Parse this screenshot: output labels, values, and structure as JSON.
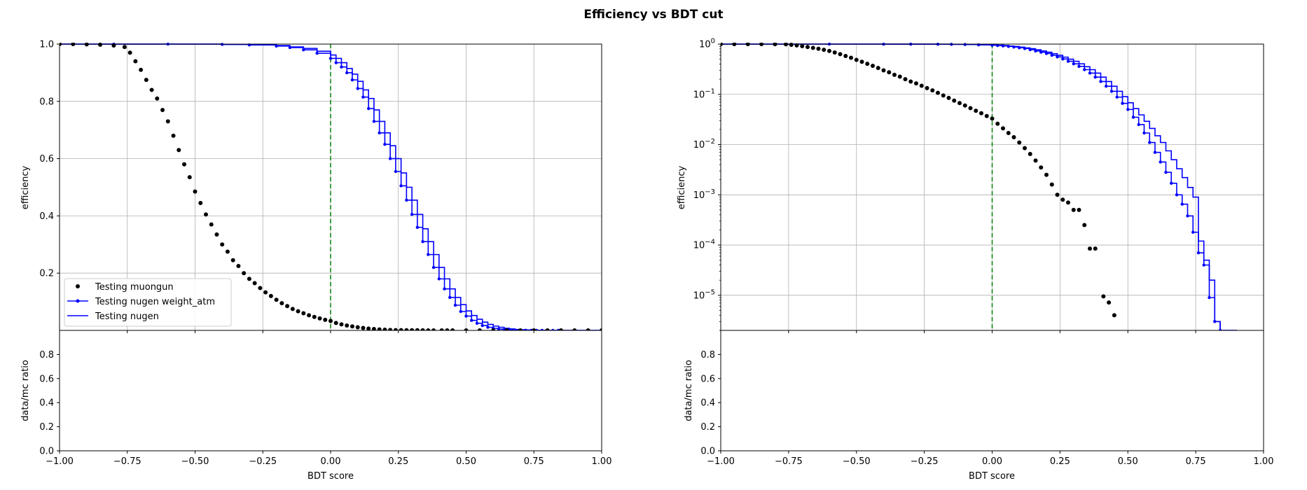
{
  "figure": {
    "title": "Efficiency vs BDT cut"
  },
  "colors": {
    "muongun": "#000000",
    "nugen_weight_atm": "#0000ff",
    "nugen": "#0000ff",
    "cut_line": "#008000",
    "grid": "#b0b0b0"
  },
  "chart_data": [
    {
      "type": "line",
      "panel": "left-linear",
      "xlabel": "BDT score",
      "ylabel": "efficiency",
      "xlim": [
        -1.0,
        1.0
      ],
      "ylim": [
        0.0,
        1.0
      ],
      "yscale": "linear",
      "xticks": [
        "−1.00",
        "−0.75",
        "−0.50",
        "−0.25",
        "0.00",
        "0.25",
        "0.50",
        "0.75",
        "1.00"
      ],
      "yticks": [
        "0.2",
        "0.4",
        "0.6",
        "0.8",
        "1.0"
      ],
      "grid": true,
      "cut_line_x": 0.0,
      "legend": {
        "position": "lower-left",
        "entries": [
          "Testing muongun",
          "Testing nugen weight_atm",
          "Testing nugen"
        ]
      },
      "ratio_panel": {
        "ylabel": "data/mc ratio",
        "ylim": [
          0.0,
          1.0
        ],
        "yticks": [
          "0.0",
          "0.2",
          "0.4",
          "0.6",
          "0.8"
        ]
      }
    },
    {
      "type": "line",
      "panel": "right-log",
      "xlabel": "BDT score",
      "ylabel": "efficiency",
      "xlim": [
        -1.0,
        1.0
      ],
      "ylim": [
        2e-06,
        1.0
      ],
      "yscale": "log",
      "xticks": [
        "−1.00",
        "−0.75",
        "−0.50",
        "−0.25",
        "0.00",
        "0.25",
        "0.50",
        "0.75",
        "1.00"
      ],
      "ytick_exponents": [
        "0",
        "−1",
        "−2",
        "−3",
        "−4",
        "−5"
      ],
      "grid": true,
      "cut_line_x": 0.0,
      "ratio_panel": {
        "ylabel": "data/mc ratio",
        "ylim": [
          0.0,
          1.0
        ],
        "yticks": [
          "0.0",
          "0.2",
          "0.4",
          "0.6",
          "0.8"
        ]
      }
    }
  ],
  "series": {
    "muongun": {
      "name": "Testing muongun",
      "x": [
        -1.0,
        -0.95,
        -0.9,
        -0.85,
        -0.8,
        -0.76,
        -0.74,
        -0.72,
        -0.7,
        -0.68,
        -0.66,
        -0.64,
        -0.62,
        -0.6,
        -0.58,
        -0.56,
        -0.54,
        -0.52,
        -0.5,
        -0.48,
        -0.46,
        -0.44,
        -0.42,
        -0.4,
        -0.38,
        -0.36,
        -0.34,
        -0.32,
        -0.3,
        -0.28,
        -0.26,
        -0.24,
        -0.22,
        -0.2,
        -0.18,
        -0.16,
        -0.14,
        -0.12,
        -0.1,
        -0.08,
        -0.06,
        -0.04,
        -0.02,
        0.0,
        0.02,
        0.04,
        0.06,
        0.08,
        0.1,
        0.12,
        0.14,
        0.16,
        0.18,
        0.2,
        0.22,
        0.24,
        0.26,
        0.28,
        0.3,
        0.32,
        0.34,
        0.36,
        0.38,
        0.41,
        0.43,
        0.45,
        0.5,
        0.55,
        0.6,
        0.65,
        0.7,
        0.75,
        0.8,
        0.85,
        0.9,
        0.95,
        1.0
      ],
      "y": [
        1.0,
        1.0,
        0.999,
        0.998,
        0.995,
        0.99,
        0.97,
        0.94,
        0.91,
        0.875,
        0.84,
        0.81,
        0.77,
        0.73,
        0.68,
        0.63,
        0.58,
        0.535,
        0.485,
        0.445,
        0.405,
        0.37,
        0.335,
        0.3,
        0.275,
        0.245,
        0.225,
        0.2,
        0.18,
        0.165,
        0.148,
        0.133,
        0.12,
        0.107,
        0.095,
        0.085,
        0.075,
        0.067,
        0.06,
        0.053,
        0.047,
        0.042,
        0.037,
        0.033,
        0.026,
        0.021,
        0.017,
        0.014,
        0.011,
        0.0085,
        0.0065,
        0.0048,
        0.0035,
        0.0025,
        0.0016,
        0.001,
        0.0008,
        0.0007,
        0.0005,
        0.0005,
        0.00025,
        8.5e-05,
        8.5e-05,
        9.5e-06,
        7.2e-06,
        4e-06,
        0.0,
        0.0,
        0.0,
        0.0,
        0.0,
        0.0,
        0.0,
        0.0,
        0.0,
        0.0,
        0.0
      ]
    },
    "nugen_weight_atm": {
      "name": "Testing nugen weight_atm",
      "x": [
        -1.0,
        -0.8,
        -0.6,
        -0.4,
        -0.3,
        -0.2,
        -0.15,
        -0.1,
        -0.05,
        0.0,
        0.02,
        0.04,
        0.06,
        0.08,
        0.1,
        0.12,
        0.14,
        0.16,
        0.18,
        0.2,
        0.22,
        0.24,
        0.26,
        0.28,
        0.3,
        0.32,
        0.34,
        0.36,
        0.38,
        0.4,
        0.42,
        0.44,
        0.46,
        0.48,
        0.5,
        0.52,
        0.54,
        0.56,
        0.58,
        0.6,
        0.62,
        0.64,
        0.66,
        0.68,
        0.7,
        0.72,
        0.74,
        0.76,
        0.78,
        0.8,
        0.82,
        0.84,
        0.9,
        1.0
      ],
      "y": [
        1.0,
        1.0,
        1.0,
        0.999,
        0.997,
        0.993,
        0.988,
        0.98,
        0.968,
        0.95,
        0.935,
        0.92,
        0.9,
        0.875,
        0.845,
        0.815,
        0.775,
        0.73,
        0.69,
        0.65,
        0.6,
        0.555,
        0.505,
        0.455,
        0.405,
        0.36,
        0.31,
        0.265,
        0.22,
        0.18,
        0.145,
        0.115,
        0.088,
        0.066,
        0.05,
        0.035,
        0.025,
        0.017,
        0.011,
        0.007,
        0.0045,
        0.0028,
        0.0017,
        0.001,
        0.00065,
        0.00038,
        0.00018,
        7e-05,
        4e-05,
        9e-06,
        3e-06,
        2e-06,
        0.0,
        0.0
      ]
    },
    "nugen": {
      "name": "Testing nugen",
      "x": [
        -1.0,
        -0.8,
        -0.6,
        -0.4,
        -0.3,
        -0.2,
        -0.15,
        -0.1,
        -0.05,
        0.0,
        0.02,
        0.04,
        0.06,
        0.08,
        0.1,
        0.12,
        0.14,
        0.16,
        0.18,
        0.2,
        0.22,
        0.24,
        0.26,
        0.28,
        0.3,
        0.32,
        0.34,
        0.36,
        0.38,
        0.4,
        0.42,
        0.44,
        0.46,
        0.48,
        0.5,
        0.52,
        0.54,
        0.56,
        0.58,
        0.6,
        0.62,
        0.64,
        0.66,
        0.68,
        0.7,
        0.72,
        0.74,
        0.76,
        0.78,
        0.8,
        0.82,
        0.84,
        0.9,
        1.0
      ],
      "y": [
        1.0,
        1.0,
        1.0,
        0.999,
        0.998,
        0.995,
        0.99,
        0.985,
        0.975,
        0.962,
        0.95,
        0.935,
        0.915,
        0.895,
        0.87,
        0.84,
        0.81,
        0.77,
        0.73,
        0.69,
        0.645,
        0.6,
        0.55,
        0.5,
        0.455,
        0.405,
        0.355,
        0.31,
        0.265,
        0.22,
        0.18,
        0.145,
        0.115,
        0.09,
        0.068,
        0.052,
        0.039,
        0.029,
        0.021,
        0.015,
        0.011,
        0.0075,
        0.005,
        0.0033,
        0.0022,
        0.0014,
        0.0009,
        0.00012,
        5e-05,
        2e-05,
        3e-06,
        2e-06,
        0.0,
        0.0
      ]
    }
  }
}
